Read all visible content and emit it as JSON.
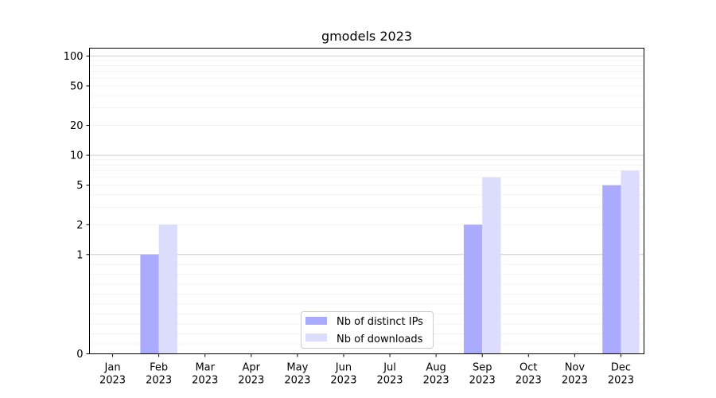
{
  "chart_data": {
    "type": "bar",
    "title": "gmodels 2023",
    "categories": [
      "Jan\n2023",
      "Feb\n2023",
      "Mar\n2023",
      "Apr\n2023",
      "May\n2023",
      "Jun\n2023",
      "Jul\n2023",
      "Aug\n2023",
      "Sep\n2023",
      "Oct\n2023",
      "Nov\n2023",
      "Dec\n2023"
    ],
    "series": [
      {
        "name": "Nb of distinct IPs",
        "values": [
          0,
          1,
          0,
          0,
          0,
          0,
          0,
          0,
          2,
          0,
          0,
          5
        ],
        "color": "#aaaaff"
      },
      {
        "name": "Nb of downloads",
        "values": [
          0,
          2,
          0,
          0,
          0,
          0,
          0,
          0,
          6,
          0,
          0,
          7
        ],
        "color": "#dcdcfc"
      }
    ],
    "yscale": "symlog",
    "yticks": [
      0,
      1,
      2,
      5,
      10,
      20,
      50,
      100
    ],
    "ylim": [
      0,
      120
    ],
    "grid": true,
    "legend_position": "bottom-center"
  }
}
